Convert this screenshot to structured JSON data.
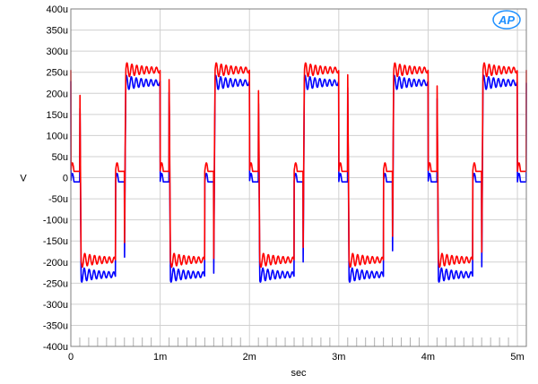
{
  "chart_data": {
    "type": "line",
    "title": "",
    "xlabel": "sec",
    "ylabel": "V",
    "xlim": [
      0,
      0.0051
    ],
    "ylim": [
      -400,
      400
    ],
    "y_unit_note": "y values in microvolts as printed on the axis (u)",
    "x_ticks": [
      0,
      0.001,
      0.002,
      0.003,
      0.004,
      0.005
    ],
    "x_tick_labels": [
      "0",
      "1m",
      "2m",
      "3m",
      "4m",
      "5m"
    ],
    "y_ticks": [
      400,
      350,
      300,
      250,
      200,
      150,
      100,
      50,
      0,
      -50,
      -100,
      -150,
      -200,
      -250,
      -300,
      -350,
      -400
    ],
    "y_tick_labels": [
      "400u",
      "350u",
      "300u",
      "250u",
      "200u",
      "150u",
      "100u",
      "50u",
      "0",
      "-50u",
      "-100u",
      "-150u",
      "-200u",
      "-250u",
      "-300u",
      "-350u",
      "-400u"
    ],
    "grid": true,
    "series": [
      {
        "color": "#ff0000",
        "square_wave": {
          "period": 0.001,
          "first_rise": 0.0006,
          "first_fall": 0.0001,
          "high_level": 255,
          "low_level": -195,
          "step_level": 15,
          "step_width": 0.0001
        }
      },
      {
        "color": "#0000ff",
        "square_wave": {
          "period": 0.001,
          "first_rise": 0.0006,
          "first_fall": 0.0001,
          "high_level": 225,
          "low_level": -230,
          "step_level": -10,
          "step_width": 0.0001
        }
      }
    ],
    "logo": "AP",
    "logo_color": "#1e90ff"
  }
}
